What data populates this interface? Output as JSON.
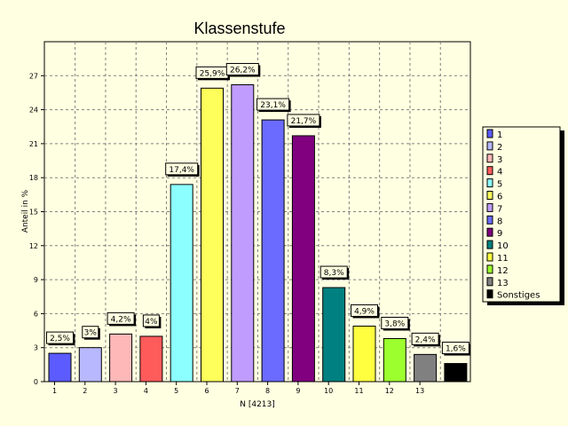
{
  "chart_data": {
    "type": "bar",
    "title": "Klassenstufe",
    "xlabel": "N [4213]",
    "ylabel": "Anteil in %",
    "ylim": [
      0,
      30
    ],
    "yticks": [
      "0",
      "3",
      "6",
      "9",
      "12",
      "15",
      "18",
      "21",
      "24",
      "27"
    ],
    "grid": true,
    "legend_position": "right",
    "categories": [
      "1",
      "2",
      "3",
      "4",
      "5",
      "6",
      "7",
      "8",
      "9",
      "10",
      "11",
      "12",
      "13",
      "Sonstiges"
    ],
    "tick_labels": [
      "1",
      "2",
      "3",
      "4",
      "5",
      "6",
      "7",
      "8",
      "9",
      "10",
      "11",
      "12",
      "13",
      ""
    ],
    "values": [
      2.5,
      3,
      4.2,
      4,
      17.4,
      25.9,
      26.2,
      23.1,
      21.7,
      8.3,
      4.9,
      3.8,
      2.4,
      1.6
    ],
    "data_labels": [
      "2,5%",
      "3%",
      "4,2%",
      "4%",
      "17,4%",
      "25,9%",
      "26,2%",
      "23,1%",
      "21,7%",
      "8,3%",
      "4,9%",
      "3,8%",
      "2,4%",
      "1,6%"
    ],
    "colors": [
      "#5b5bff",
      "#b8b8ff",
      "#ffb8b8",
      "#ff5b5b",
      "#8cffff",
      "#ffff5b",
      "#c09cff",
      "#6b6bff",
      "#800080",
      "#008080",
      "#ffff40",
      "#9cff2e",
      "#808080",
      "#000000"
    ]
  }
}
